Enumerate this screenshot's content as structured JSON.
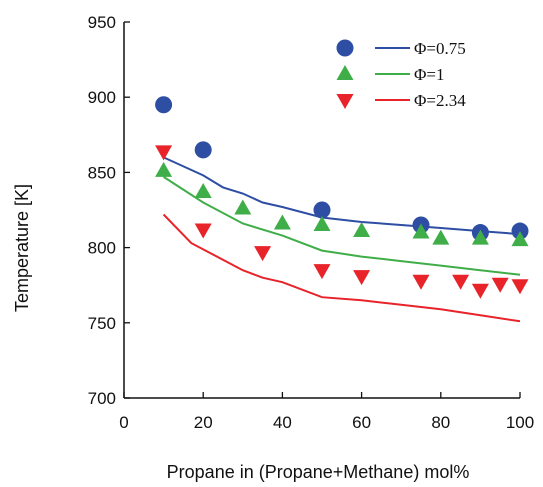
{
  "chart_data": {
    "type": "scatter",
    "title": "",
    "xlabel": "Propane in (Propane+Methane) mol%",
    "ylabel": "Temperature [K]",
    "xlim": [
      0,
      100
    ],
    "ylim": [
      700,
      950
    ],
    "x_ticks": [
      0,
      20,
      40,
      60,
      80,
      100
    ],
    "y_ticks": [
      700,
      750,
      800,
      850,
      900,
      950
    ],
    "x_tick_labels": [
      "0",
      "20",
      "40",
      "60",
      "80",
      "100"
    ],
    "y_tick_labels": [
      "700",
      "750",
      "800",
      "850",
      "900",
      "950"
    ],
    "grid": false,
    "legend_position": "top-right",
    "legend": [
      {
        "marker_series": "exp-075",
        "line_series": "model-075",
        "label": "Φ=0.75"
      },
      {
        "marker_series": "exp-1",
        "line_series": "model-1",
        "label": "Φ=1"
      },
      {
        "marker_series": "exp-234",
        "line_series": "model-234",
        "label": "Φ=2.34"
      }
    ],
    "marker_series": [
      {
        "id": "exp-075",
        "marker": "circle",
        "color": "#2e4ea3",
        "points": [
          [
            10,
            895
          ],
          [
            20,
            865
          ],
          [
            50,
            825
          ],
          [
            75,
            815
          ],
          [
            90,
            810
          ],
          [
            100,
            811
          ]
        ]
      },
      {
        "id": "exp-1",
        "marker": "triangle-up",
        "color": "#3fae49",
        "points": [
          [
            10,
            851
          ],
          [
            20,
            837
          ],
          [
            30,
            826
          ],
          [
            40,
            816
          ],
          [
            50,
            815
          ],
          [
            60,
            811
          ],
          [
            75,
            810
          ],
          [
            80,
            806
          ],
          [
            90,
            806
          ],
          [
            100,
            805
          ]
        ]
      },
      {
        "id": "exp-234",
        "marker": "triangle-down",
        "color": "#e8232a",
        "points": [
          [
            10,
            864
          ],
          [
            20,
            812
          ],
          [
            35,
            797
          ],
          [
            50,
            785
          ],
          [
            60,
            781
          ],
          [
            75,
            778
          ],
          [
            85,
            778
          ],
          [
            90,
            772
          ],
          [
            95,
            776
          ],
          [
            100,
            775
          ]
        ]
      }
    ],
    "line_series": [
      {
        "id": "model-075",
        "color": "#2e4ea3",
        "points": [
          [
            10,
            860
          ],
          [
            20,
            848
          ],
          [
            25,
            840
          ],
          [
            30,
            836
          ],
          [
            35,
            830
          ],
          [
            40,
            827
          ],
          [
            50,
            820
          ],
          [
            60,
            817
          ],
          [
            70,
            815
          ],
          [
            80,
            813
          ],
          [
            90,
            811
          ],
          [
            100,
            809
          ]
        ]
      },
      {
        "id": "model-1",
        "color": "#3fae49",
        "points": [
          [
            10,
            847
          ],
          [
            20,
            830
          ],
          [
            30,
            816
          ],
          [
            40,
            808
          ],
          [
            50,
            798
          ],
          [
            60,
            794
          ],
          [
            70,
            791
          ],
          [
            80,
            788
          ],
          [
            90,
            785
          ],
          [
            100,
            782
          ]
        ]
      },
      {
        "id": "model-234",
        "color": "#e8232a",
        "points": [
          [
            10,
            822
          ],
          [
            17,
            803
          ],
          [
            30,
            785
          ],
          [
            35,
            780
          ],
          [
            40,
            777
          ],
          [
            50,
            767
          ],
          [
            60,
            765
          ],
          [
            70,
            762
          ],
          [
            80,
            759
          ],
          [
            90,
            755
          ],
          [
            100,
            751
          ]
        ]
      }
    ]
  }
}
